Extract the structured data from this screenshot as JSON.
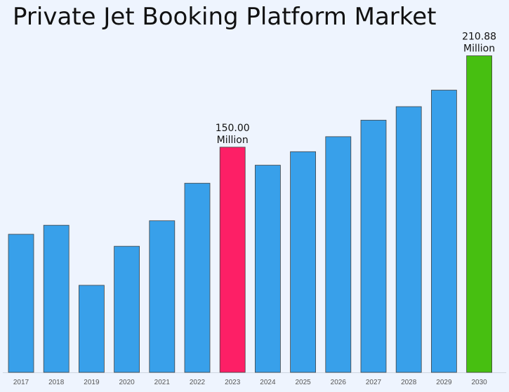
{
  "chart_data": {
    "type": "bar",
    "title": "Private Jet Booking Platform Market",
    "categories": [
      "2017",
      "2018",
      "2019",
      "2020",
      "2021",
      "2022",
      "2023",
      "2024",
      "2025",
      "2026",
      "2027",
      "2028",
      "2029",
      "2030"
    ],
    "values": [
      92,
      98,
      58,
      84,
      101,
      126,
      150.0,
      138,
      147,
      157,
      168,
      177,
      188,
      210.88
    ],
    "ylim": [
      0,
      220
    ],
    "grid": false,
    "legend": "none",
    "colors": {
      "default": "#38a0ea",
      "highlight_2023": "#fd1f66",
      "highlight_2030": "#47bf11",
      "edge": "#444444"
    },
    "annotations": [
      {
        "category": "2023",
        "lines": [
          "150.00",
          "Million"
        ]
      },
      {
        "category": "2030",
        "lines": [
          "210.88",
          "Million"
        ]
      }
    ]
  }
}
